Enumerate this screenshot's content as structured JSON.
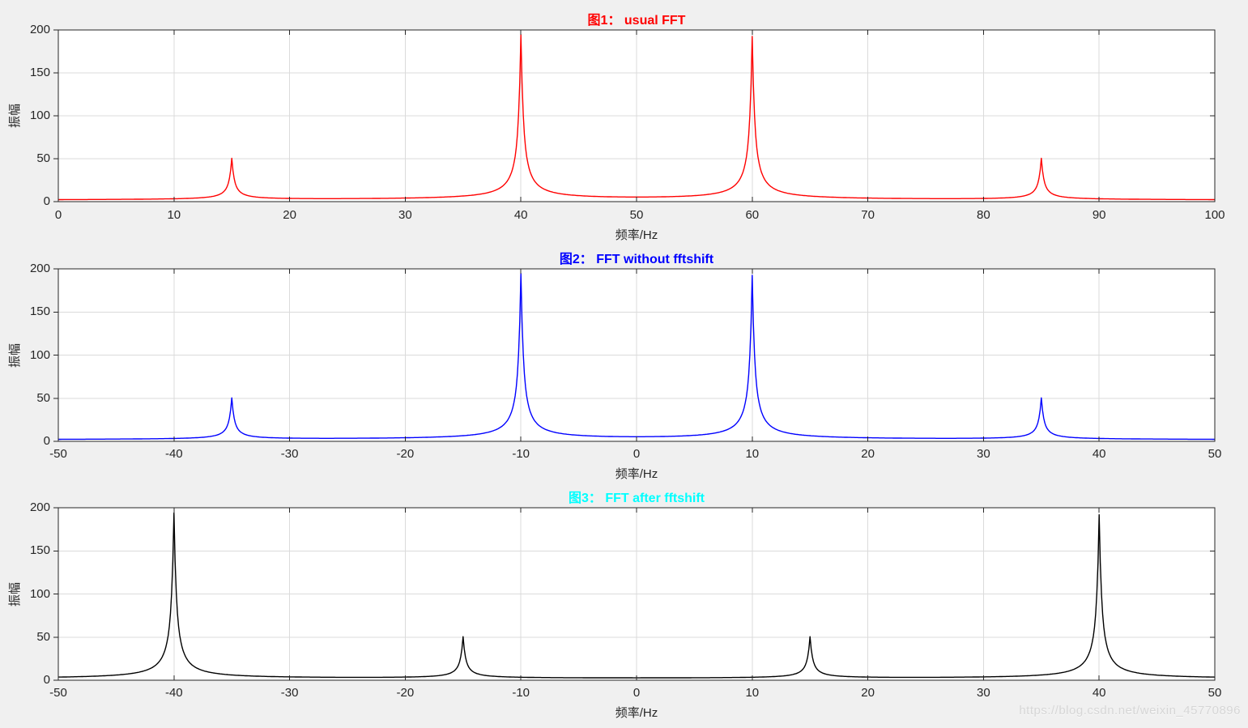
{
  "figure": {
    "background": "#f0f0f0",
    "plot_background": "#ffffff",
    "axis_color": "#262626",
    "grid_color": "#dbdbdb",
    "watermark": "https://blog.csdn.net/weixin_45770896"
  },
  "chart_data": [
    {
      "type": "line",
      "title": "图1： usual FFT",
      "title_color": "#ff0000",
      "line_color": "#ff0000",
      "xlabel": "频率/Hz",
      "ylabel": "振幅",
      "xlim": [
        0,
        100
      ],
      "ylim": [
        0,
        200
      ],
      "xticks": [
        0,
        10,
        20,
        30,
        40,
        50,
        60,
        70,
        80,
        90,
        100
      ],
      "yticks": [
        0,
        50,
        100,
        150,
        200
      ],
      "grid": true,
      "legend": null,
      "peaks": [
        {
          "freq": 15,
          "amp": 48
        },
        {
          "freq": 40,
          "amp": 192
        },
        {
          "freq": 60,
          "amp": 190
        },
        {
          "freq": 85,
          "amp": 48
        }
      ],
      "baseline": 1.5,
      "peak_width_hz": 0.21,
      "peak_shape_power": 1.2
    },
    {
      "type": "line",
      "title": "图2： FFT without fftshift",
      "title_color": "#0000ff",
      "line_color": "#0000ff",
      "xlabel": "频率/Hz",
      "ylabel": "振幅",
      "xlim": [
        -50,
        50
      ],
      "ylim": [
        0,
        200
      ],
      "xticks": [
        -50,
        -40,
        -30,
        -20,
        -10,
        0,
        10,
        20,
        30,
        40,
        50
      ],
      "yticks": [
        0,
        50,
        100,
        150,
        200
      ],
      "grid": true,
      "legend": null,
      "peaks": [
        {
          "freq": -35,
          "amp": 48
        },
        {
          "freq": -10,
          "amp": 192
        },
        {
          "freq": 10,
          "amp": 190
        },
        {
          "freq": 35,
          "amp": 48
        }
      ],
      "baseline": 1.5,
      "peak_width_hz": 0.21,
      "peak_shape_power": 1.2
    },
    {
      "type": "line",
      "title": "图3： FFT after fftshift",
      "title_color": "#00ffff",
      "line_color": "#000000",
      "xlabel": "频率/Hz",
      "ylabel": "振幅",
      "xlim": [
        -50,
        50
      ],
      "ylim": [
        0,
        200
      ],
      "xticks": [
        -50,
        -40,
        -30,
        -20,
        -10,
        0,
        10,
        20,
        30,
        40,
        50
      ],
      "yticks": [
        0,
        50,
        100,
        150,
        200
      ],
      "grid": true,
      "legend": null,
      "peaks": [
        {
          "freq": -40,
          "amp": 192
        },
        {
          "freq": -15,
          "amp": 48
        },
        {
          "freq": 15,
          "amp": 48
        },
        {
          "freq": 40,
          "amp": 190
        }
      ],
      "baseline": 1.5,
      "peak_width_hz": 0.21,
      "peak_shape_power": 1.2
    }
  ]
}
